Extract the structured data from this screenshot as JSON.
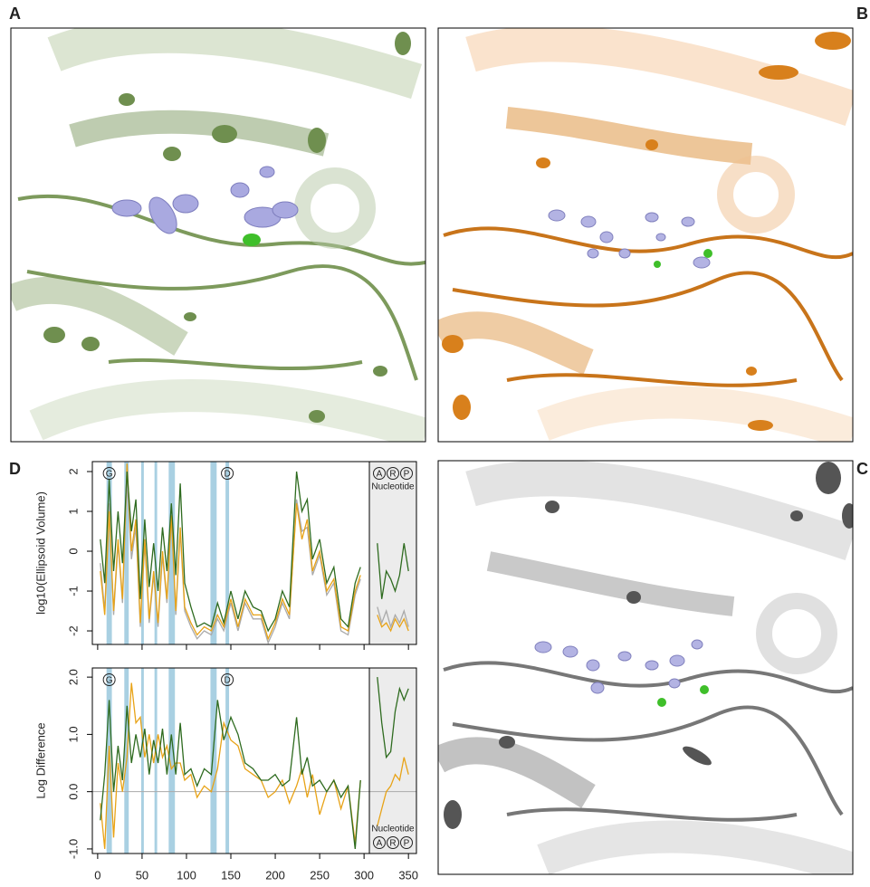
{
  "panel_labels": [
    "A",
    "B",
    "C",
    "D"
  ],
  "chart_data": [
    {
      "type": "line",
      "ylabel": "log10(Ellipsoid Volume)",
      "xlim": [
        -6,
        359
      ],
      "xticks": [
        0,
        50,
        100,
        150,
        200,
        250,
        300,
        350
      ],
      "ylim": [
        -2.34,
        2.25
      ],
      "yticks": [
        -2,
        -1,
        0,
        1,
        2
      ],
      "highlight_color": "#a9d0e2",
      "highlights": [
        [
          10,
          16
        ],
        [
          30,
          35
        ],
        [
          49,
          52
        ],
        [
          64,
          67
        ],
        [
          80,
          87
        ],
        [
          127,
          134
        ],
        [
          144,
          148
        ]
      ],
      "annotations": [
        {
          "text": "G",
          "x": 13
        },
        {
          "text": "D",
          "x": 146
        }
      ],
      "nucleotide_label": "Nucleotide",
      "nucleotide_marks": [
        "A",
        "R",
        "P"
      ],
      "x": [
        3,
        8,
        13,
        18,
        23,
        28,
        33,
        38,
        43,
        48,
        53,
        58,
        63,
        68,
        73,
        78,
        83,
        88,
        93,
        98,
        105,
        112,
        120,
        128,
        135,
        142,
        150,
        158,
        166,
        175,
        184,
        192,
        200,
        208,
        216,
        224,
        230,
        236,
        242,
        250,
        258,
        266,
        274,
        282,
        290,
        296,
        305,
        315,
        320,
        325,
        330,
        335,
        340,
        345,
        350
      ],
      "series": [
        {
          "color": "#aaaaaa",
          "values": [
            -0.3,
            -1.5,
            1.2,
            -1.6,
            0.2,
            -1.3,
            1.8,
            -0.2,
            0.6,
            -1.9,
            0.2,
            -1.8,
            -0.6,
            -1.9,
            -0.1,
            -1.3,
            0.8,
            -1.6,
            0.5,
            -1.5,
            -1.9,
            -2.2,
            -2.0,
            -2.1,
            -1.7,
            -2.0,
            -1.3,
            -2.0,
            -1.3,
            -1.7,
            -1.7,
            -2.3,
            -1.9,
            -1.3,
            -1.7,
            1.3,
            0.5,
            0.6,
            -0.6,
            -0.1,
            -1.1,
            -0.8,
            -2.0,
            -2.1,
            -1.1,
            -0.7,
            null,
            -1.4,
            -1.8,
            -1.5,
            -1.9,
            -1.6,
            -1.8,
            -1.5,
            -1.9
          ]
        },
        {
          "color": "#e8a317",
          "values": [
            -0.5,
            -1.6,
            1.0,
            -1.5,
            0.3,
            -1.2,
            2.2,
            0.0,
            0.8,
            -1.8,
            0.3,
            -1.7,
            -0.5,
            -1.8,
            0.0,
            -1.2,
            0.9,
            -1.5,
            0.6,
            -1.4,
            -1.8,
            -2.1,
            -1.9,
            -2.0,
            -1.6,
            -1.9,
            -1.2,
            -1.9,
            -1.2,
            -1.6,
            -1.6,
            -2.2,
            -1.8,
            -1.2,
            -1.6,
            1.2,
            0.3,
            0.8,
            -0.5,
            0.0,
            -1.0,
            -0.7,
            -1.9,
            -2.0,
            -1.0,
            -0.6,
            null,
            -1.6,
            -1.9,
            -1.8,
            -2.0,
            -1.7,
            -1.9,
            -1.7,
            -2.0
          ]
        },
        {
          "color": "#2e6b1f",
          "values": [
            0.3,
            -0.8,
            1.8,
            -0.5,
            1.0,
            -0.3,
            2.0,
            0.5,
            1.3,
            -1.2,
            0.8,
            -0.9,
            0.2,
            -1.0,
            0.6,
            -0.5,
            1.2,
            -0.6,
            1.7,
            -0.8,
            -1.4,
            -1.9,
            -1.8,
            -1.9,
            -1.3,
            -1.8,
            -1.0,
            -1.7,
            -1.0,
            -1.4,
            -1.5,
            -2.0,
            -1.7,
            -1.0,
            -1.4,
            2.0,
            1.0,
            1.3,
            -0.2,
            0.3,
            -0.8,
            -0.4,
            -1.7,
            -1.9,
            -0.8,
            -0.4,
            null,
            0.2,
            -1.2,
            -0.5,
            -0.7,
            -1.0,
            -0.6,
            0.2,
            -0.5
          ]
        }
      ]
    },
    {
      "type": "line",
      "ylabel": "Log Difference",
      "xlim": [
        -6,
        359
      ],
      "xticks": [
        0,
        50,
        100,
        150,
        200,
        250,
        300,
        350
      ],
      "ylim": [
        -1.08,
        2.16
      ],
      "yticks": [
        {
          "value": -1,
          "label": "-1.0"
        },
        {
          "value": 0,
          "label": "0.0"
        },
        {
          "value": 1,
          "label": "1.0"
        },
        {
          "value": 2,
          "label": "2.0"
        }
      ],
      "zero_line": 0,
      "highlight_color": "#a9d0e2",
      "highlights": [
        [
          10,
          16
        ],
        [
          30,
          35
        ],
        [
          49,
          52
        ],
        [
          64,
          67
        ],
        [
          80,
          87
        ],
        [
          127,
          134
        ],
        [
          144,
          148
        ]
      ],
      "annotations": [
        {
          "text": "G",
          "x": 13
        },
        {
          "text": "D",
          "x": 146
        }
      ],
      "nucleotide_label": "Nucleotide",
      "nucleotide_marks": [
        "A",
        "R",
        "P"
      ],
      "x": [
        3,
        8,
        13,
        18,
        23,
        28,
        33,
        38,
        43,
        48,
        53,
        58,
        63,
        68,
        73,
        78,
        83,
        88,
        93,
        98,
        105,
        112,
        120,
        128,
        135,
        142,
        150,
        158,
        166,
        175,
        184,
        192,
        200,
        208,
        216,
        224,
        230,
        236,
        242,
        250,
        258,
        266,
        274,
        282,
        290,
        296,
        305,
        315,
        320,
        325,
        330,
        335,
        340,
        345,
        350
      ],
      "series": [
        {
          "color": "#e8a317",
          "values": [
            -0.2,
            -1.0,
            0.8,
            -0.8,
            0.5,
            0.0,
            0.6,
            1.9,
            1.2,
            1.3,
            0.6,
            1.0,
            0.5,
            1.0,
            0.6,
            0.8,
            0.4,
            0.5,
            0.5,
            0.2,
            0.3,
            -0.1,
            0.1,
            0.0,
            0.4,
            1.2,
            0.9,
            0.8,
            0.4,
            0.3,
            0.2,
            -0.1,
            0.0,
            0.2,
            -0.2,
            0.1,
            0.4,
            -0.1,
            0.3,
            -0.4,
            0.0,
            0.2,
            -0.3,
            0.1,
            -0.9,
            0.2,
            null,
            -0.6,
            -0.3,
            0.0,
            0.1,
            0.3,
            0.2,
            0.6,
            0.3
          ]
        },
        {
          "color": "#2e6b1f",
          "values": [
            -0.5,
            0.3,
            1.6,
            0.0,
            0.8,
            0.2,
            1.5,
            0.5,
            1.0,
            0.6,
            1.1,
            0.3,
            0.9,
            0.5,
            1.1,
            0.3,
            1.0,
            0.3,
            1.2,
            0.3,
            0.4,
            0.1,
            0.4,
            0.3,
            1.6,
            0.9,
            1.3,
            1.0,
            0.5,
            0.4,
            0.2,
            0.2,
            0.3,
            0.1,
            0.2,
            1.3,
            0.3,
            0.6,
            0.1,
            0.2,
            0.0,
            0.2,
            -0.1,
            0.1,
            -1.0,
            0.2,
            null,
            2.0,
            1.2,
            0.6,
            0.7,
            1.4,
            1.8,
            1.6,
            1.8
          ]
        }
      ]
    }
  ]
}
